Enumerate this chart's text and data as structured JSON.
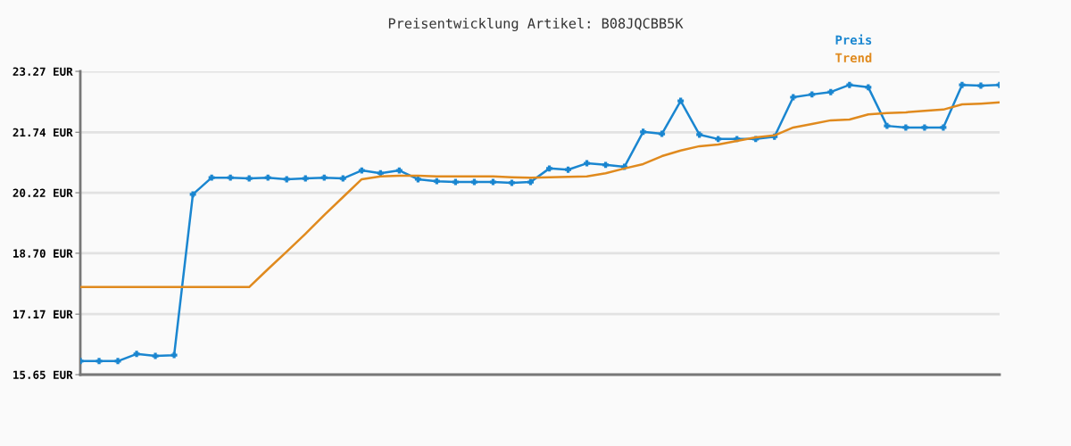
{
  "chart_data": {
    "type": "line",
    "title": "Preisentwicklung Artikel: B08JQCBB5K",
    "categories": [
      null,
      null,
      null,
      null,
      null,
      null,
      null,
      null,
      null,
      null,
      null,
      null,
      null,
      null,
      null,
      null,
      null,
      null,
      null,
      null,
      null,
      null,
      null,
      null,
      null,
      null,
      null,
      null,
      null,
      null,
      null,
      null,
      null,
      null,
      null,
      null,
      null,
      null,
      null,
      null,
      null,
      null,
      null,
      null,
      null,
      null,
      null,
      null,
      null,
      null
    ],
    "series": [
      {
        "name": "Preis",
        "color": "#1a86d0",
        "marker": "cross",
        "values": [
          15.99,
          15.99,
          15.99,
          16.17,
          16.12,
          16.14,
          20.18,
          20.6,
          20.6,
          20.58,
          20.6,
          20.56,
          20.58,
          20.6,
          20.58,
          20.78,
          20.71,
          20.78,
          20.56,
          20.51,
          20.49,
          20.49,
          20.49,
          20.47,
          20.49,
          20.83,
          20.8,
          20.96,
          20.92,
          20.87,
          21.75,
          21.7,
          22.53,
          21.68,
          21.57,
          21.57,
          21.57,
          21.63,
          22.62,
          22.69,
          22.75,
          22.93,
          22.87,
          21.9,
          21.86,
          21.86,
          21.86,
          22.93,
          22.91,
          22.93
        ]
      },
      {
        "name": "Trend",
        "color": "#e08a1e",
        "marker": "none",
        "values": [
          17.85,
          17.85,
          17.85,
          17.85,
          17.85,
          17.85,
          17.85,
          17.85,
          17.85,
          17.85,
          18.3,
          18.74,
          19.19,
          19.66,
          20.11,
          20.56,
          20.63,
          20.65,
          20.65,
          20.63,
          20.63,
          20.63,
          20.63,
          20.61,
          20.6,
          20.61,
          20.62,
          20.63,
          20.71,
          20.83,
          20.94,
          21.14,
          21.28,
          21.39,
          21.43,
          21.52,
          21.61,
          21.66,
          21.86,
          21.95,
          22.04,
          22.06,
          22.19,
          22.22,
          22.24,
          22.28,
          22.31,
          22.44,
          22.46,
          22.49
        ]
      }
    ],
    "ylim": [
      15.65,
      23.27
    ],
    "yticks": [
      {
        "value": 15.65,
        "label": "15.65 EUR"
      },
      {
        "value": 17.17,
        "label": "17.17 EUR"
      },
      {
        "value": 18.7,
        "label": "18.70 EUR"
      },
      {
        "value": 20.22,
        "label": "20.22 EUR"
      },
      {
        "value": 21.74,
        "label": "21.74 EUR"
      },
      {
        "value": 23.27,
        "label": "23.27 EUR"
      }
    ],
    "grid": "y",
    "legend": "top right",
    "tick_labels": "y",
    "line_style": "solid"
  }
}
